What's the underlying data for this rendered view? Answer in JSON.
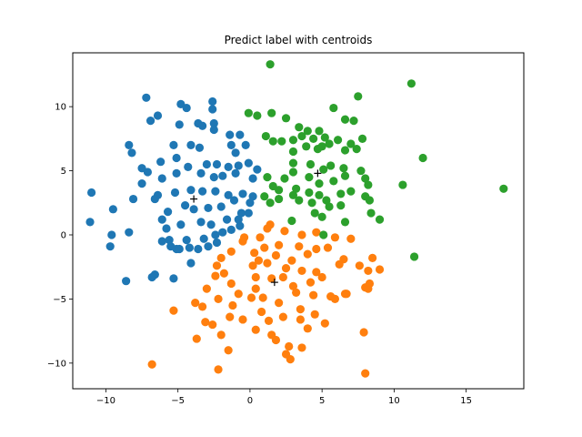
{
  "chart_data": {
    "type": "scatter",
    "title": "Predict label with centroids",
    "xlabel": "",
    "ylabel": "",
    "xlim": [
      -12.3,
      19.0
    ],
    "ylim": [
      -12.0,
      14.2
    ],
    "xticks": [
      -10,
      -5,
      0,
      5,
      10,
      15
    ],
    "yticks": [
      -10,
      -5,
      0,
      5,
      10
    ],
    "grid": false,
    "legend": "none",
    "series": [
      {
        "color": "#1f77b4",
        "points": [
          [
            -7.2,
            10.7
          ],
          [
            -4.8,
            10.2
          ],
          [
            -2.6,
            10.4
          ],
          [
            -2.6,
            9.8
          ],
          [
            -4.4,
            9.9
          ],
          [
            -6.9,
            8.9
          ],
          [
            -6.4,
            9.3
          ],
          [
            -3.6,
            8.7
          ],
          [
            -2.5,
            8.7
          ],
          [
            -2.5,
            8.2
          ],
          [
            -4.9,
            8.6
          ],
          [
            -3.3,
            8.5
          ],
          [
            -8.4,
            7.0
          ],
          [
            -8.2,
            6.4
          ],
          [
            -5.3,
            7.0
          ],
          [
            -4.1,
            7.0
          ],
          [
            -3.5,
            6.8
          ],
          [
            -1.4,
            7.8
          ],
          [
            -1.3,
            7.0
          ],
          [
            -0.7,
            7.8
          ],
          [
            -0.3,
            7.0
          ],
          [
            -1.0,
            6.4
          ],
          [
            -7.5,
            5.2
          ],
          [
            -7.1,
            4.9
          ],
          [
            -6.2,
            5.7
          ],
          [
            -5.1,
            6.0
          ],
          [
            -4.3,
            5.3
          ],
          [
            -3.0,
            5.5
          ],
          [
            -2.3,
            5.5
          ],
          [
            -1.5,
            5.3
          ],
          [
            -0.8,
            5.4
          ],
          [
            -0.1,
            5.6
          ],
          [
            -7.5,
            4.0
          ],
          [
            -6.1,
            4.4
          ],
          [
            -5.1,
            4.8
          ],
          [
            -3.4,
            4.8
          ],
          [
            -2.5,
            4.5
          ],
          [
            -1.9,
            4.6
          ],
          [
            -1.0,
            4.8
          ],
          [
            0.2,
            4.4
          ],
          [
            0.5,
            5.1
          ],
          [
            -11.0,
            3.3
          ],
          [
            -9.5,
            2.0
          ],
          [
            -8.1,
            2.8
          ],
          [
            -6.4,
            3.1
          ],
          [
            -5.2,
            3.3
          ],
          [
            -4.1,
            3.5
          ],
          [
            -3.3,
            3.4
          ],
          [
            -2.4,
            3.4
          ],
          [
            -1.5,
            3.1
          ],
          [
            -0.5,
            3.2
          ],
          [
            0.2,
            3.0
          ],
          [
            -6.6,
            2.8
          ],
          [
            -5.7,
            1.8
          ],
          [
            -4.5,
            2.3
          ],
          [
            -3.9,
            2.0
          ],
          [
            -2.9,
            2.1
          ],
          [
            -2.0,
            2.2
          ],
          [
            -1.1,
            2.7
          ],
          [
            0.0,
            2.5
          ],
          [
            -0.6,
            1.7
          ],
          [
            -11.1,
            1.0
          ],
          [
            -9.6,
            0.0
          ],
          [
            -9.7,
            -0.9
          ],
          [
            -8.4,
            0.2
          ],
          [
            -6.1,
            1.2
          ],
          [
            -5.8,
            0.5
          ],
          [
            -4.8,
            0.8
          ],
          [
            -3.4,
            1.0
          ],
          [
            -2.7,
            0.8
          ],
          [
            -1.6,
            1.2
          ],
          [
            -0.8,
            1.2
          ],
          [
            -0.1,
            1.7
          ],
          [
            -6.1,
            -0.5
          ],
          [
            -5.6,
            -0.4
          ],
          [
            -5.1,
            -1.1
          ],
          [
            -4.4,
            -0.4
          ],
          [
            -3.2,
            -0.3
          ],
          [
            -2.4,
            0.0
          ],
          [
            -1.9,
            0.2
          ],
          [
            -1.3,
            0.4
          ],
          [
            -0.7,
            0.7
          ],
          [
            -5.5,
            -0.9
          ],
          [
            -4.9,
            -1.1
          ],
          [
            -4.2,
            -1.0
          ],
          [
            -3.6,
            -1.1
          ],
          [
            -2.9,
            -0.9
          ],
          [
            -2.3,
            -0.6
          ],
          [
            -8.6,
            -3.6
          ],
          [
            -6.6,
            -3.1
          ],
          [
            -6.8,
            -3.3
          ],
          [
            -5.3,
            -3.4
          ],
          [
            -4.1,
            -2.2
          ]
        ]
      },
      {
        "color": "#ff7f0e",
        "points": [
          [
            1.4,
            0.8
          ],
          [
            2.4,
            0.3
          ],
          [
            3.6,
            0.0
          ],
          [
            4.6,
            0.2
          ],
          [
            5.9,
            -0.2
          ],
          [
            7.0,
            -0.3
          ],
          [
            1.2,
            0.5
          ],
          [
            0.7,
            -0.2
          ],
          [
            -0.4,
            -0.2
          ],
          [
            -0.5,
            -0.5
          ],
          [
            1.0,
            -1.0
          ],
          [
            2.0,
            -0.8
          ],
          [
            3.4,
            -0.9
          ],
          [
            4.6,
            -1.1
          ],
          [
            5.4,
            -1.0
          ],
          [
            0.3,
            -1.4
          ],
          [
            0.6,
            -2.0
          ],
          [
            1.8,
            -1.6
          ],
          [
            2.9,
            -2.0
          ],
          [
            4.0,
            -1.5
          ],
          [
            -1.3,
            -1.3
          ],
          [
            -2.0,
            -1.8
          ],
          [
            -2.3,
            -2.4
          ],
          [
            -1.8,
            -3.0
          ],
          [
            0.2,
            -2.4
          ],
          [
            1.2,
            -2.2
          ],
          [
            2.5,
            -2.6
          ],
          [
            3.6,
            -2.8
          ],
          [
            4.6,
            -2.9
          ],
          [
            6.5,
            -1.9
          ],
          [
            -2.4,
            -3.2
          ],
          [
            -3.0,
            -4.2
          ],
          [
            -1.3,
            -3.8
          ],
          [
            -0.8,
            -4.6
          ],
          [
            0.4,
            -4.2
          ],
          [
            1.5,
            -3.4
          ],
          [
            2.3,
            -3.3
          ],
          [
            3.0,
            -4.0
          ],
          [
            4.2,
            -3.7
          ],
          [
            5.0,
            -3.3
          ],
          [
            -3.8,
            -5.3
          ],
          [
            -3.3,
            -5.6
          ],
          [
            -2.2,
            -5.0
          ],
          [
            -1.2,
            -5.5
          ],
          [
            0.1,
            -4.9
          ],
          [
            0.9,
            -4.9
          ],
          [
            2.0,
            -5.3
          ],
          [
            3.2,
            -4.5
          ],
          [
            4.4,
            -4.7
          ],
          [
            5.6,
            -4.8
          ],
          [
            -5.3,
            -5.9
          ],
          [
            -3.1,
            -6.8
          ],
          [
            -2.6,
            -7.0
          ],
          [
            -1.4,
            -6.4
          ],
          [
            -0.5,
            -6.6
          ],
          [
            0.8,
            -6.0
          ],
          [
            1.3,
            -6.7
          ],
          [
            2.3,
            -6.4
          ],
          [
            3.5,
            -6.6
          ],
          [
            4.5,
            -6.2
          ],
          [
            6.6,
            -4.6
          ],
          [
            -3.7,
            -8.1
          ],
          [
            -2.0,
            -7.8
          ],
          [
            -1.5,
            -9.0
          ],
          [
            0.4,
            -7.4
          ],
          [
            1.5,
            -7.8
          ],
          [
            2.7,
            -8.7
          ],
          [
            3.6,
            -8.8
          ],
          [
            4.0,
            -7.3
          ],
          [
            -6.8,
            -10.1
          ],
          [
            -2.2,
            -10.5
          ],
          [
            2.8,
            -9.7
          ],
          [
            2.5,
            -9.3
          ],
          [
            1.8,
            -8.2
          ],
          [
            5.2,
            -6.9
          ],
          [
            7.9,
            -7.6
          ],
          [
            8.0,
            -4.1
          ],
          [
            8.2,
            -4.2
          ],
          [
            8.3,
            -3.8
          ],
          [
            7.6,
            -2.4
          ],
          [
            8.2,
            -2.8
          ],
          [
            8.5,
            -1.8
          ],
          [
            9.0,
            -2.7
          ],
          [
            8.0,
            -10.8
          ],
          [
            6.2,
            -2.3
          ],
          [
            6.7,
            -4.6
          ],
          [
            5.9,
            -5.0
          ],
          [
            3.5,
            -5.8
          ],
          [
            0.4,
            -3.3
          ]
        ]
      },
      {
        "color": "#2ca02c",
        "points": [
          [
            1.4,
            13.3
          ],
          [
            11.2,
            11.8
          ],
          [
            7.5,
            10.8
          ],
          [
            5.8,
            9.9
          ],
          [
            -0.1,
            9.5
          ],
          [
            0.5,
            9.3
          ],
          [
            1.5,
            9.5
          ],
          [
            2.5,
            9.1
          ],
          [
            6.6,
            9.0
          ],
          [
            7.2,
            8.9
          ],
          [
            3.4,
            8.4
          ],
          [
            4.0,
            8.1
          ],
          [
            4.8,
            8.1
          ],
          [
            5.2,
            7.6
          ],
          [
            1.1,
            7.7
          ],
          [
            1.6,
            7.3
          ],
          [
            2.2,
            7.3
          ],
          [
            3.0,
            7.4
          ],
          [
            3.6,
            7.7
          ],
          [
            4.4,
            7.5
          ],
          [
            5.5,
            7.1
          ],
          [
            6.1,
            7.4
          ],
          [
            7.0,
            7.1
          ],
          [
            7.8,
            7.5
          ],
          [
            3.0,
            6.5
          ],
          [
            3.9,
            6.9
          ],
          [
            4.7,
            6.7
          ],
          [
            5.0,
            6.9
          ],
          [
            6.6,
            6.6
          ],
          [
            7.4,
            6.7
          ],
          [
            12.0,
            6.0
          ],
          [
            3.0,
            5.6
          ],
          [
            4.2,
            5.5
          ],
          [
            5.1,
            5.1
          ],
          [
            5.6,
            5.4
          ],
          [
            6.5,
            5.2
          ],
          [
            7.7,
            5.0
          ],
          [
            1.2,
            4.5
          ],
          [
            2.4,
            4.4
          ],
          [
            3.0,
            4.9
          ],
          [
            4.1,
            4.5
          ],
          [
            4.8,
            4.0
          ],
          [
            5.8,
            4.2
          ],
          [
            6.6,
            4.6
          ],
          [
            8.0,
            4.4
          ],
          [
            1.6,
            3.8
          ],
          [
            2.0,
            3.5
          ],
          [
            3.2,
            3.6
          ],
          [
            4.1,
            3.3
          ],
          [
            4.8,
            3.1
          ],
          [
            6.3,
            3.2
          ],
          [
            7.0,
            3.4
          ],
          [
            8.2,
            3.9
          ],
          [
            8.0,
            3.0
          ],
          [
            10.6,
            3.9
          ],
          [
            17.6,
            3.6
          ],
          [
            1.0,
            3.0
          ],
          [
            1.4,
            2.5
          ],
          [
            2.0,
            2.8
          ],
          [
            3.0,
            3.1
          ],
          [
            3.4,
            2.7
          ],
          [
            4.3,
            2.5
          ],
          [
            5.3,
            2.7
          ],
          [
            5.5,
            2.2
          ],
          [
            6.3,
            2.3
          ],
          [
            8.3,
            2.7
          ],
          [
            8.4,
            1.7
          ],
          [
            9.0,
            1.2
          ],
          [
            4.5,
            1.7
          ],
          [
            5.0,
            1.4
          ],
          [
            2.9,
            1.1
          ],
          [
            6.6,
            1.0
          ],
          [
            5.1,
            0.0
          ],
          [
            11.4,
            -1.7
          ]
        ]
      }
    ],
    "centroids": [
      {
        "x": -3.9,
        "y": 2.8,
        "marker": "+"
      },
      {
        "x": 1.7,
        "y": -3.7,
        "marker": "+"
      },
      {
        "x": 4.7,
        "y": 4.8,
        "marker": "+"
      }
    ]
  }
}
